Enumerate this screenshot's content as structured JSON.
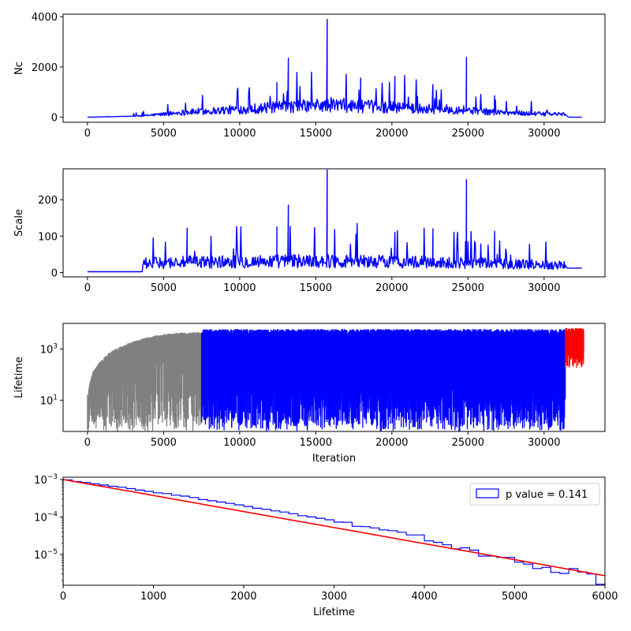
{
  "chart_data": [
    {
      "type": "line",
      "ylabel": "Nc",
      "xlabel": "",
      "xlim": [
        -1600,
        34000
      ],
      "ylim": [
        -200,
        4100
      ],
      "xticks": [
        0,
        5000,
        10000,
        15000,
        20000,
        25000,
        30000
      ],
      "xtick_labels": [
        "0",
        "5000",
        "10000",
        "15000",
        "20000",
        "25000",
        "30000"
      ],
      "yticks": [
        0,
        2000,
        4000
      ],
      "ytick_labels": [
        "0",
        "2000",
        "4000"
      ],
      "series": [
        {
          "color": "#0000ff",
          "x": [
            0,
            3500,
            6500,
            9500,
            12000,
            13200,
            15750,
            16000,
            18000,
            20200,
            22500,
            24900,
            25200,
            26800,
            28500,
            30000,
            31400,
            31600,
            32500
          ],
          "y": [
            0,
            50,
            200,
            300,
            380,
            420,
            480,
            500,
            430,
            400,
            330,
            300,
            260,
            200,
            160,
            130,
            120,
            0,
            0
          ],
          "spikes": [
            {
              "x": 13200,
              "y": 2350
            },
            {
              "x": 15750,
              "y": 3900
            },
            {
              "x": 24900,
              "y": 2380
            },
            {
              "x": 12450,
              "y": 1380
            },
            {
              "x": 20200,
              "y": 1620
            },
            {
              "x": 17950,
              "y": 1560
            },
            {
              "x": 22700,
              "y": 1300
            },
            {
              "x": 26750,
              "y": 850
            }
          ]
        }
      ]
    },
    {
      "type": "line",
      "ylabel": "Scale",
      "xlabel": "",
      "xlim": [
        -1600,
        34000
      ],
      "ylim": [
        -12,
        285
      ],
      "xticks": [
        0,
        5000,
        10000,
        15000,
        20000,
        25000,
        30000
      ],
      "xtick_labels": [
        "0",
        "5000",
        "10000",
        "15000",
        "20000",
        "25000",
        "30000"
      ],
      "yticks": [
        0,
        100,
        200
      ],
      "ytick_labels": [
        "0",
        "100",
        "200"
      ],
      "series": [
        {
          "color": "#0000ff",
          "x": [
            0,
            3600,
            3650,
            6000,
            10000,
            15000,
            20000,
            25000,
            30000,
            31400,
            31500,
            32500
          ],
          "y": [
            2,
            2,
            25,
            28,
            30,
            32,
            30,
            26,
            22,
            20,
            12,
            12
          ],
          "spikes": [
            {
              "x": 15750,
              "y": 282
            },
            {
              "x": 24900,
              "y": 255
            },
            {
              "x": 13200,
              "y": 185
            },
            {
              "x": 12450,
              "y": 125
            },
            {
              "x": 6550,
              "y": 122
            },
            {
              "x": 26750,
              "y": 113
            },
            {
              "x": 22700,
              "y": 120
            },
            {
              "x": 20200,
              "y": 110
            }
          ]
        }
      ]
    },
    {
      "type": "line",
      "ylabel": "Lifetime",
      "xlabel": "Iteration",
      "xlim": [
        -1600,
        34000
      ],
      "yscale": "log",
      "ylim": [
        0.6,
        10000
      ],
      "xticks": [
        0,
        5000,
        10000,
        15000,
        20000,
        25000,
        30000
      ],
      "xtick_labels": [
        "0",
        "5000",
        "10000",
        "15000",
        "20000",
        "25000",
        "30000"
      ],
      "yticks": [
        10,
        1000
      ],
      "ytick_labels": [
        "10^1",
        "10^3"
      ],
      "series": [
        {
          "color": "#808080",
          "x_range": [
            0,
            7500
          ],
          "envelope_top": [
            [
              0,
              1
            ],
            [
              200,
              60
            ],
            [
              1000,
              400
            ],
            [
              2500,
              1500
            ],
            [
              4000,
              3000
            ],
            [
              5500,
              4200
            ],
            [
              7500,
              4700
            ]
          ],
          "floor": 0.6
        },
        {
          "color": "#0000ff",
          "x_range": [
            7500,
            31400
          ],
          "top": 5500,
          "floor": 0.6
        },
        {
          "color": "#ff0000",
          "x_range": [
            31400,
            32600
          ],
          "top": 6000,
          "low": 300
        }
      ]
    },
    {
      "type": "histogram",
      "ylabel": "",
      "xlabel": "Lifetime",
      "xlim": [
        0,
        6000
      ],
      "yscale": "log",
      "ylim": [
        1.5e-06,
        0.00115
      ],
      "xticks": [
        0,
        1000,
        2000,
        3000,
        4000,
        5000,
        6000
      ],
      "xtick_labels": [
        "0",
        "1000",
        "2000",
        "3000",
        "4000",
        "5000",
        "6000"
      ],
      "yticks": [
        1e-05,
        0.0001,
        0.001
      ],
      "ytick_labels": [
        "10^-5",
        "10^-4",
        "10^-3"
      ],
      "legend": {
        "label": "p value = 0.141",
        "placement": "top-right"
      },
      "fit": {
        "color": "#ff0000",
        "x": [
          0,
          6000
        ],
        "y": [
          0.001,
          2.7e-06
        ]
      },
      "bins": {
        "color": "#0000ff",
        "edges": [
          0,
          100,
          200,
          300,
          400,
          500,
          600,
          700,
          800,
          900,
          1000,
          1100,
          1200,
          1300,
          1400,
          1500,
          1600,
          1700,
          1800,
          1900,
          2000,
          2100,
          2200,
          2300,
          2400,
          2500,
          2600,
          2700,
          2800,
          2900,
          3000,
          3100,
          3200,
          3300,
          3400,
          3500,
          3600,
          3700,
          3800,
          3900,
          4000,
          4100,
          4200,
          4300,
          4400,
          4500,
          4600,
          4700,
          4800,
          4900,
          5000,
          5100,
          5200,
          5300,
          5400,
          5500,
          5600,
          5700,
          5800,
          5900,
          6000
        ],
        "values": [
          0.00098,
          0.00088,
          0.00083,
          0.00077,
          0.00071,
          0.00066,
          0.00062,
          0.00057,
          0.00052,
          0.00048,
          0.00044,
          0.00042,
          0.00038,
          0.00036,
          0.00033,
          0.00029,
          0.00027,
          0.00025,
          0.00023,
          0.00021,
          0.00019,
          0.00017,
          0.00016,
          0.000145,
          0.000135,
          0.000122,
          0.000108,
          0.0001,
          9.2e-05,
          8.4e-05,
          7.3e-05,
          7.2e-05,
          5.6e-05,
          5.5e-05,
          5.1e-05,
          4.5e-05,
          4.3e-05,
          3.9e-05,
          3.3e-05,
          3.3e-05,
          2.3e-05,
          2.1e-05,
          1.8e-05,
          1.4e-05,
          1.5e-05,
          1.3e-05,
          9e-06,
          9e-06,
          8.3e-06,
          8.3e-06,
          6.2e-06,
          5.5e-06,
          4.2e-06,
          4.5e-06,
          3.3e-06,
          3.1e-06,
          4.2e-06,
          3.4e-06,
          3e-06,
          1.6e-06
        ]
      }
    }
  ]
}
